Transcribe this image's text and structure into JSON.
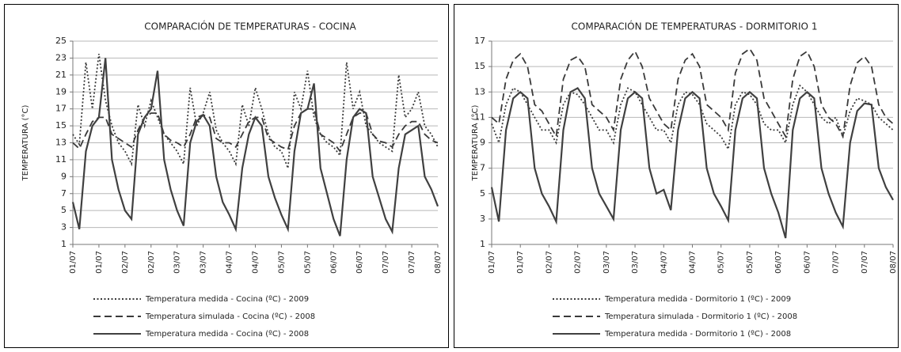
{
  "chart_data": [
    {
      "type": "line",
      "title": "COMPARACIÓN DE TEMPERATURAS - COCINA",
      "y_label": "TEMPERATURA (°C)",
      "categories": [
        "01/07",
        null,
        null,
        null,
        "01/07",
        null,
        null,
        null,
        "02/07",
        null,
        null,
        null,
        "02/07",
        null,
        null,
        null,
        "03/07",
        null,
        null,
        null,
        "03/07",
        null,
        null,
        null,
        "04/07",
        null,
        null,
        null,
        "04/07",
        null,
        null,
        null,
        "05/07",
        null,
        null,
        null,
        "05/07",
        null,
        null,
        null,
        "06/07",
        null,
        null,
        null,
        "06/07",
        null,
        null,
        null,
        "07/07",
        null,
        null,
        null,
        "07/07",
        null,
        null,
        null,
        "08/07"
      ],
      "ylim": [
        1,
        25
      ],
      "yticks": [
        1,
        3,
        5,
        7,
        9,
        11,
        13,
        15,
        17,
        19,
        21,
        23,
        25
      ],
      "grid": true,
      "series": [
        {
          "name": "Temperatura medida - Cocina (ºC) - 2009",
          "color": "#3a3a3a",
          "dash": "dotted",
          "values": [
            14,
            12.8,
            22.5,
            17,
            23.5,
            18,
            15,
            13,
            12,
            10.5,
            17.5,
            15,
            18,
            16,
            14,
            13,
            12,
            10.5,
            19.5,
            15,
            16.5,
            19,
            14.5,
            13,
            12,
            10.5,
            17.5,
            15,
            19.5,
            17,
            14,
            12.5,
            12,
            10,
            19,
            17,
            21.5,
            16,
            14,
            13,
            12.5,
            11.5,
            22.5,
            17,
            19,
            15,
            14,
            13,
            12.5,
            12,
            21,
            16,
            17,
            19,
            15,
            14,
            12.5
          ]
        },
        {
          "name": "Temperatura simulada - Cocina (ºC) - 2008",
          "color": "#3a3a3a",
          "dash": "dashed",
          "values": [
            13,
            12.3,
            14,
            15.5,
            16,
            16,
            14,
            13.5,
            13,
            12.5,
            14.5,
            16,
            16.5,
            16.5,
            14,
            13.3,
            13,
            12.5,
            14,
            16,
            16.3,
            16,
            13.5,
            13,
            13,
            12.5,
            14,
            15.5,
            16,
            16,
            13.5,
            13,
            12.5,
            12.2,
            15,
            16.5,
            17,
            17,
            14,
            13.5,
            13,
            12,
            14,
            16,
            16.5,
            16.5,
            14,
            13.2,
            13,
            12.5,
            14,
            15,
            15.5,
            15.5,
            14,
            13.3,
            13
          ]
        },
        {
          "name": "Temperatura medida - Cocina (ºC) - 2008",
          "color": "#404040",
          "dash": "solid",
          "values": [
            6,
            2.8,
            12,
            15,
            16,
            23,
            11,
            7.5,
            5,
            4,
            14,
            16,
            17,
            21.5,
            11,
            7.5,
            5,
            3.2,
            13,
            15.5,
            16.3,
            15,
            9,
            6,
            4.5,
            2.8,
            10,
            14,
            16,
            15,
            9,
            6.5,
            4.5,
            2.8,
            12,
            16.5,
            17,
            20,
            10,
            7,
            4,
            2,
            11,
            16,
            17,
            16.5,
            9,
            6.5,
            4,
            2.5,
            10,
            14,
            14.5,
            15,
            9,
            7.5,
            5.5
          ]
        }
      ]
    },
    {
      "type": "line",
      "title": "COMPARACIÓN DE TEMPERATURAS - DORMITORIO 1",
      "y_label": "TEMPERATURA (°C)",
      "categories": [
        "01/07",
        null,
        null,
        null,
        "01/07",
        null,
        null,
        null,
        "02/07",
        null,
        null,
        null,
        "02/07",
        null,
        null,
        null,
        "03/07",
        null,
        null,
        null,
        "03/07",
        null,
        null,
        null,
        "04/07",
        null,
        null,
        null,
        "04/07",
        null,
        null,
        null,
        "05/07",
        null,
        null,
        null,
        "05/07",
        null,
        null,
        null,
        "06/07",
        null,
        null,
        null,
        "06/07",
        null,
        null,
        null,
        "07/07",
        null,
        null,
        null,
        "07/07",
        null,
        null,
        null,
        "08/07"
      ],
      "ylim": [
        1,
        17
      ],
      "yticks": [
        1,
        3,
        5,
        7,
        9,
        11,
        13,
        15,
        17
      ],
      "grid": true,
      "series": [
        {
          "name": "Temperatura medida - Dormitorio 1 (ºC) - 2009",
          "color": "#3a3a3a",
          "dash": "dotted",
          "values": [
            10.5,
            9,
            12,
            13.3,
            13,
            12,
            11,
            10,
            10,
            9,
            12,
            13,
            12.8,
            12,
            11,
            10,
            10,
            9,
            12,
            13.3,
            13,
            12,
            11,
            10,
            10,
            9,
            12,
            13,
            12.8,
            12,
            10.5,
            10,
            9.5,
            8.5,
            12,
            13,
            12.8,
            12,
            10.5,
            10,
            10,
            9,
            12,
            13.5,
            13,
            12,
            11,
            10.5,
            11,
            9.5,
            11.5,
            12.5,
            12.3,
            12,
            11,
            10.5,
            10
          ]
        },
        {
          "name": "Temperatura simulada - Dormitorio 1 (ºC) - 2008",
          "color": "#3a3a3a",
          "dash": "dashed",
          "values": [
            11,
            10.5,
            14,
            15.5,
            16,
            15,
            12,
            11.5,
            10.5,
            9.5,
            14,
            15.5,
            15.8,
            15,
            12,
            11.5,
            11,
            10,
            14,
            15.5,
            16.2,
            15,
            12.5,
            11.5,
            10.5,
            10,
            14,
            15.5,
            16,
            15,
            12,
            11.5,
            11,
            10,
            14.5,
            16,
            16.4,
            15.5,
            12.5,
            11.5,
            10.5,
            9.5,
            14,
            15.8,
            16.2,
            15,
            12,
            11,
            10.5,
            9.5,
            13.5,
            15.3,
            15.8,
            15,
            12,
            11,
            10.5
          ]
        },
        {
          "name": "Temperatura medida - Dormitorio 1 (ºC) - 2008",
          "color": "#404040",
          "dash": "solid",
          "values": [
            5.5,
            2.8,
            10,
            12.5,
            13,
            12.5,
            7,
            5,
            4,
            2.8,
            10,
            13,
            13.3,
            12.5,
            7,
            5,
            4,
            3,
            10,
            12.5,
            13,
            12.5,
            7,
            5,
            5.3,
            3.7,
            10,
            12.5,
            13,
            12.5,
            7,
            5,
            4,
            2.9,
            10,
            12.5,
            13,
            12.5,
            7,
            5,
            3.5,
            1.5,
            10,
            12.5,
            13,
            12.5,
            7,
            5,
            3.5,
            2.4,
            9,
            11.5,
            12.1,
            12,
            7,
            5.5,
            4.5
          ]
        }
      ]
    }
  ]
}
